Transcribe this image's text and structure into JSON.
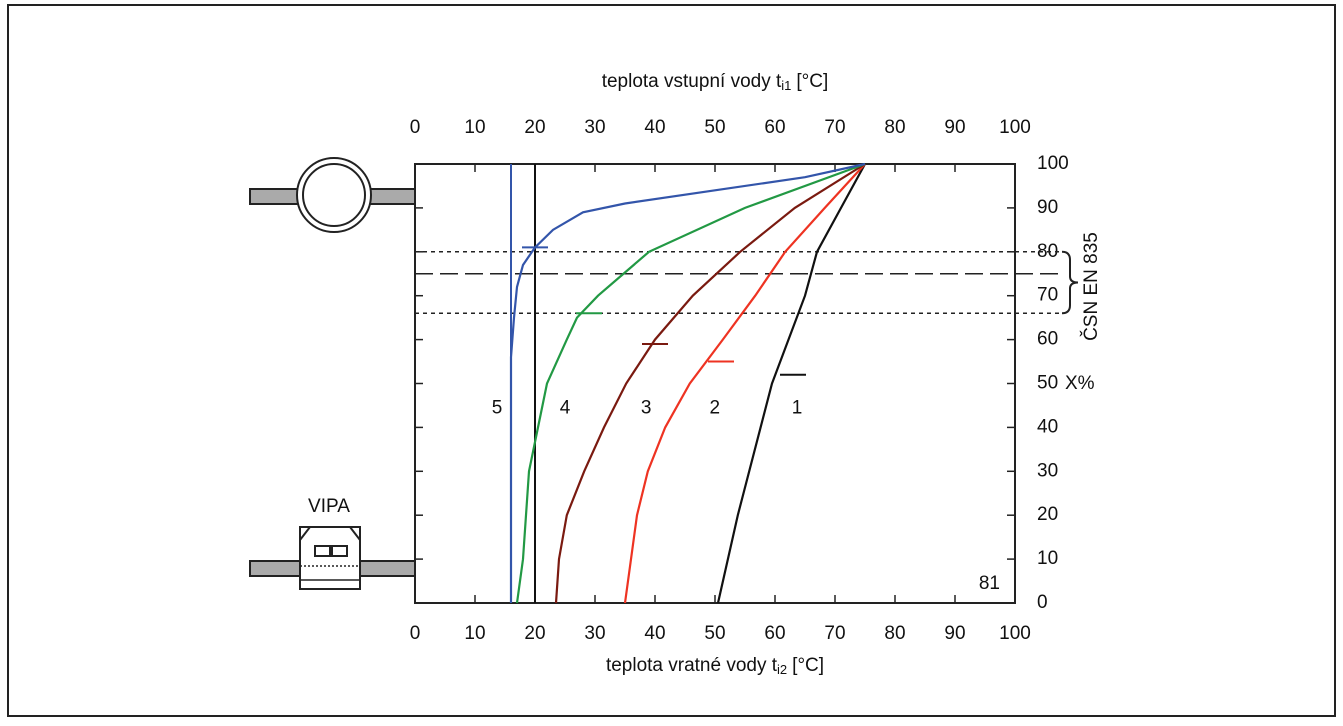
{
  "chart_data": {
    "type": "line",
    "x2_label": {
      "text": "teplota vstupní vody t",
      "sub": "i1",
      "unit": "[°C]"
    },
    "x_label": {
      "text": "teplota vratné vody t",
      "sub": "i2",
      "unit": "[°C]"
    },
    "y_label": "X%",
    "xlim": [
      0,
      100
    ],
    "xticks": [
      0,
      10,
      20,
      30,
      40,
      50,
      60,
      70,
      80,
      90,
      100
    ],
    "ylim": [
      0,
      100
    ],
    "yticks": [
      0,
      10,
      20,
      30,
      40,
      50,
      60,
      70,
      80,
      90,
      100
    ],
    "series": [
      {
        "name": "1",
        "color": "#111111",
        "x": [
          50.5,
          53.8,
          59.5,
          65,
          67,
          71,
          75
        ],
        "values": [
          0,
          20,
          50,
          70,
          80,
          90,
          100
        ],
        "marker": {
          "x": 63,
          "y": 52
        }
      },
      {
        "name": "2",
        "color": "#ee3322",
        "x": [
          35,
          36,
          37,
          38.8,
          41.7,
          45.8,
          51.3,
          56.7,
          61.7,
          68.3,
          75
        ],
        "values": [
          0,
          10,
          20,
          30,
          40,
          50,
          60,
          70,
          80,
          90,
          100
        ],
        "marker": {
          "x": 51,
          "y": 55
        }
      },
      {
        "name": "3",
        "color": "#7a1a10",
        "x": [
          23.5,
          24,
          25.3,
          28.2,
          31.5,
          35.2,
          40,
          46.3,
          54.2,
          63.3,
          75
        ],
        "values": [
          0,
          10,
          20,
          30,
          40,
          50,
          60,
          70,
          80,
          90,
          100
        ],
        "marker": {
          "x": 40,
          "y": 59
        }
      },
      {
        "name": "4",
        "color": "#229944",
        "x": [
          17,
          18,
          18.5,
          19,
          20.5,
          22,
          25.3,
          27,
          30.5,
          39,
          55,
          75
        ],
        "values": [
          0,
          10,
          20,
          30,
          40,
          50,
          60,
          65,
          70,
          80,
          90,
          100
        ],
        "marker": {
          "x": 29,
          "y": 66
        }
      },
      {
        "name": "5",
        "color": "#3355aa",
        "x": [
          16,
          16,
          16.5,
          17,
          18,
          20,
          23,
          28,
          35,
          50,
          65,
          75
        ],
        "values": [
          0,
          56,
          65,
          72,
          77,
          81,
          85,
          89,
          91,
          94,
          97,
          100
        ],
        "marker": {
          "x": 20,
          "y": 81
        }
      }
    ],
    "vlines": [
      {
        "value": 16,
        "color": "#3355aa"
      },
      {
        "value": 20,
        "color": "#111111"
      }
    ],
    "hlines": [
      {
        "value": 80,
        "dash": "4 4"
      },
      {
        "value": 75,
        "dash": "18 7"
      },
      {
        "value": 66,
        "dash": "4 4"
      }
    ],
    "annotation": "ČSN EN 835",
    "figure_number": "81",
    "device_label": "VIPA"
  }
}
